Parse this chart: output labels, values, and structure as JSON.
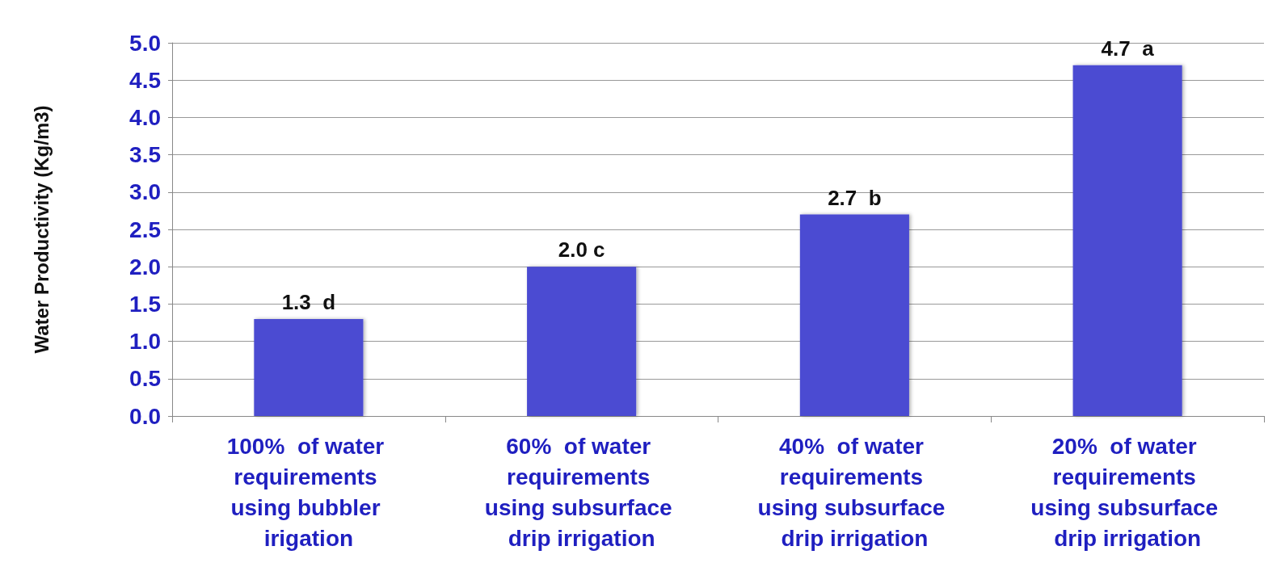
{
  "chart_data": {
    "type": "bar",
    "ylabel": "Water Productivity (Kg/m3)",
    "categories": [
      "100%  of water requirements using bubbler irigation",
      "60%  of water requirements using subsurface drip irrigation",
      "40%  of water requirements using subsurface drip irrigation",
      "20%  of water requirements using subsurface drip irrigation"
    ],
    "values": [
      1.3,
      2.0,
      2.7,
      4.7
    ],
    "value_labels": [
      "1.3  d",
      "2.0 c",
      "2.7  b",
      "4.7  a"
    ],
    "color": "#4b4bd2",
    "ylim": [
      0,
      5
    ],
    "yticks": [
      {
        "value": 0,
        "label": "0.0"
      },
      {
        "value": 0.5,
        "label": "0.5"
      },
      {
        "value": 1,
        "label": "1.0"
      },
      {
        "value": 1.5,
        "label": "1.5"
      },
      {
        "value": 2,
        "label": "2.0"
      },
      {
        "value": 2.5,
        "label": "2.5"
      },
      {
        "value": 3,
        "label": "3.0"
      },
      {
        "value": 3.5,
        "label": "3.5"
      },
      {
        "value": 4,
        "label": "4.0"
      },
      {
        "value": 4.5,
        "label": "4.5"
      },
      {
        "value": 5,
        "label": "5.0"
      }
    ],
    "grid": "y"
  }
}
